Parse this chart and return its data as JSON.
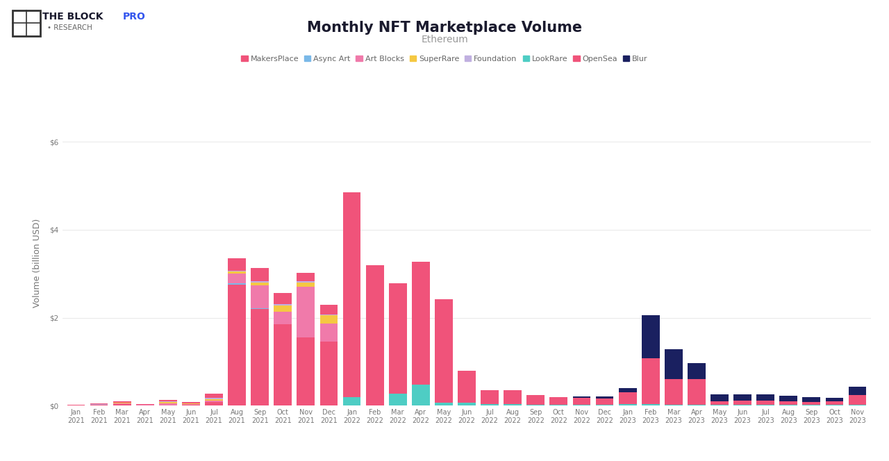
{
  "title": "Monthly NFT Marketplace Volume",
  "subtitle": "Ethereum",
  "ylabel": "Volume (billion USD)",
  "background_color": "#ffffff",
  "grid_color": "#e8e8e8",
  "categories": [
    "Jan\n2021",
    "Feb\n2021",
    "Mar\n2021",
    "Apr\n2021",
    "May\n2021",
    "Jun\n2021",
    "Jul\n2021",
    "Aug\n2021",
    "Sep\n2021",
    "Oct\n2021",
    "Nov\n2021",
    "Dec\n2021",
    "Jan\n2022",
    "Feb\n2022",
    "Mar\n2022",
    "Apr\n2022",
    "May\n2022",
    "Jun\n2022",
    "Jul\n2022",
    "Aug\n2022",
    "Sep\n2022",
    "Oct\n2022",
    "Nov\n2022",
    "Dec\n2022",
    "Jan\n2023",
    "Feb\n2023",
    "Mar\n2023",
    "Apr\n2023",
    "May\n2023",
    "Jun\n2023",
    "Jul\n2023",
    "Aug\n2023",
    "Sep\n2023",
    "Oct\n2023",
    "Nov\n2023"
  ],
  "series": {
    "MakersPlace": [
      0.005,
      0.015,
      0.035,
      0.008,
      0.01,
      0.02,
      0.08,
      2.75,
      2.2,
      1.85,
      1.55,
      1.45,
      0.0,
      0.0,
      0.0,
      0.0,
      0.0,
      0.0,
      0.0,
      0.0,
      0.0,
      0.0,
      0.0,
      0.0,
      0.0,
      0.0,
      0.0,
      0.0,
      0.0,
      0.0,
      0.0,
      0.0,
      0.0,
      0.0,
      0.0
    ],
    "Async Art": [
      0.0,
      0.0,
      0.0,
      0.0,
      0.0,
      0.0,
      0.0,
      0.035,
      0.01,
      0.005,
      0.005,
      0.005,
      0.0,
      0.0,
      0.0,
      0.0,
      0.0,
      0.0,
      0.0,
      0.0,
      0.0,
      0.0,
      0.0,
      0.0,
      0.0,
      0.0,
      0.0,
      0.0,
      0.0,
      0.0,
      0.0,
      0.0,
      0.0,
      0.0,
      0.0
    ],
    "Art Blocks": [
      0.0,
      0.005,
      0.02,
      0.005,
      0.04,
      0.01,
      0.04,
      0.22,
      0.52,
      0.28,
      1.15,
      0.42,
      0.0,
      0.0,
      0.0,
      0.0,
      0.0,
      0.0,
      0.0,
      0.0,
      0.0,
      0.0,
      0.0,
      0.0,
      0.0,
      0.0,
      0.0,
      0.0,
      0.0,
      0.0,
      0.0,
      0.0,
      0.0,
      0.0,
      0.0
    ],
    "SuperRare": [
      0.0,
      0.008,
      0.008,
      0.005,
      0.04,
      0.015,
      0.03,
      0.04,
      0.07,
      0.14,
      0.1,
      0.18,
      0.0,
      0.0,
      0.0,
      0.0,
      0.0,
      0.0,
      0.0,
      0.0,
      0.0,
      0.0,
      0.0,
      0.0,
      0.0,
      0.0,
      0.0,
      0.0,
      0.0,
      0.0,
      0.0,
      0.0,
      0.0,
      0.0,
      0.0
    ],
    "Foundation": [
      0.0,
      0.003,
      0.008,
      0.005,
      0.015,
      0.012,
      0.025,
      0.025,
      0.035,
      0.04,
      0.03,
      0.025,
      0.0,
      0.0,
      0.0,
      0.0,
      0.0,
      0.0,
      0.0,
      0.0,
      0.0,
      0.0,
      0.0,
      0.0,
      0.0,
      0.0,
      0.0,
      0.0,
      0.0,
      0.0,
      0.0,
      0.0,
      0.0,
      0.0,
      0.0
    ],
    "LookRare": [
      0.0,
      0.0,
      0.0,
      0.0,
      0.0,
      0.0,
      0.0,
      0.0,
      0.0,
      0.0,
      0.0,
      0.0,
      0.2,
      0.0,
      0.28,
      0.48,
      0.07,
      0.07,
      0.03,
      0.03,
      0.025,
      0.02,
      0.02,
      0.02,
      0.03,
      0.03,
      0.025,
      0.025,
      0.025,
      0.02,
      0.02,
      0.02,
      0.02,
      0.02,
      0.02
    ],
    "OpenSea": [
      0.008,
      0.015,
      0.03,
      0.015,
      0.025,
      0.025,
      0.1,
      0.28,
      0.3,
      0.24,
      0.19,
      0.21,
      4.65,
      3.2,
      2.5,
      2.8,
      2.35,
      0.72,
      0.32,
      0.32,
      0.22,
      0.18,
      0.16,
      0.14,
      0.28,
      1.05,
      0.58,
      0.58,
      0.08,
      0.1,
      0.09,
      0.08,
      0.07,
      0.08,
      0.22
    ],
    "Blur": [
      0.0,
      0.0,
      0.0,
      0.0,
      0.0,
      0.0,
      0.0,
      0.0,
      0.0,
      0.0,
      0.0,
      0.0,
      0.0,
      0.0,
      0.0,
      0.0,
      0.0,
      0.0,
      0.0,
      0.0,
      0.0,
      0.0,
      0.032,
      0.052,
      0.085,
      0.98,
      0.68,
      0.36,
      0.15,
      0.13,
      0.155,
      0.13,
      0.1,
      0.085,
      0.19
    ]
  },
  "colors": {
    "MakersPlace": "#f0537a",
    "Async Art": "#7ab8e8",
    "Art Blocks": "#f07aaa",
    "SuperRare": "#f5c842",
    "Foundation": "#c0b0e0",
    "LookRare": "#4ecdc4",
    "OpenSea": "#f0537a",
    "Blur": "#1a2060"
  },
  "legend_order": [
    "MakersPlace",
    "Async Art",
    "Art Blocks",
    "SuperRare",
    "Foundation",
    "LookRare",
    "OpenSea",
    "Blur"
  ],
  "yticks": [
    0,
    2,
    4,
    6
  ],
  "ylim": [
    0,
    6.5
  ],
  "title_fontsize": 15,
  "subtitle_fontsize": 10,
  "ylabel_fontsize": 9,
  "tick_fontsize": 7.5
}
